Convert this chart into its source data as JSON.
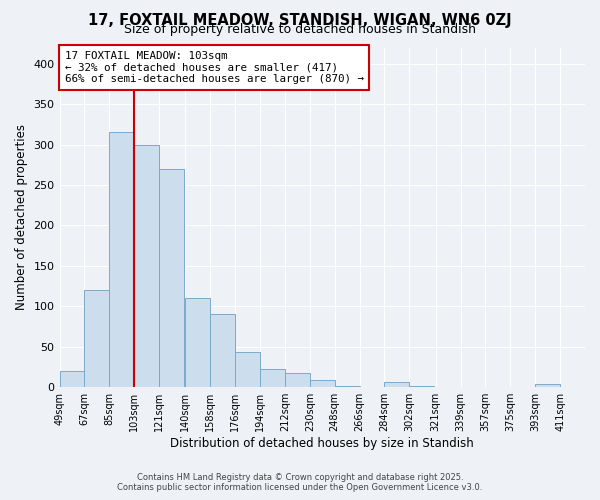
{
  "title": "17, FOXTAIL MEADOW, STANDISH, WIGAN, WN6 0ZJ",
  "subtitle": "Size of property relative to detached houses in Standish",
  "xlabel": "Distribution of detached houses by size in Standish",
  "ylabel": "Number of detached properties",
  "bar_color": "#ccdded",
  "bar_edge_color": "#7aaac8",
  "background_color": "#eef2f7",
  "grid_color": "#ffffff",
  "vline_x": 103,
  "vline_color": "#cc0000",
  "categories": [
    "49sqm",
    "67sqm",
    "85sqm",
    "103sqm",
    "121sqm",
    "140sqm",
    "158sqm",
    "176sqm",
    "194sqm",
    "212sqm",
    "230sqm",
    "248sqm",
    "266sqm",
    "284sqm",
    "302sqm",
    "321sqm",
    "339sqm",
    "357sqm",
    "375sqm",
    "393sqm",
    "411sqm"
  ],
  "bin_edges": [
    49,
    67,
    85,
    103,
    121,
    140,
    158,
    176,
    194,
    212,
    230,
    248,
    266,
    284,
    302,
    321,
    339,
    357,
    375,
    393,
    411
  ],
  "values": [
    20,
    120,
    315,
    300,
    270,
    110,
    90,
    43,
    22,
    17,
    9,
    1,
    0,
    7,
    1,
    0,
    0,
    0,
    0,
    4,
    0
  ],
  "ylim": [
    0,
    420
  ],
  "yticks": [
    0,
    50,
    100,
    150,
    200,
    250,
    300,
    350,
    400
  ],
  "annotation_title": "17 FOXTAIL MEADOW: 103sqm",
  "annotation_line1": "← 32% of detached houses are smaller (417)",
  "annotation_line2": "66% of semi-detached houses are larger (870) →",
  "annotation_box_color": "#ffffff",
  "annotation_box_edge": "#cc0000",
  "footer1": "Contains HM Land Registry data © Crown copyright and database right 2025.",
  "footer2": "Contains public sector information licensed under the Open Government Licence v3.0."
}
